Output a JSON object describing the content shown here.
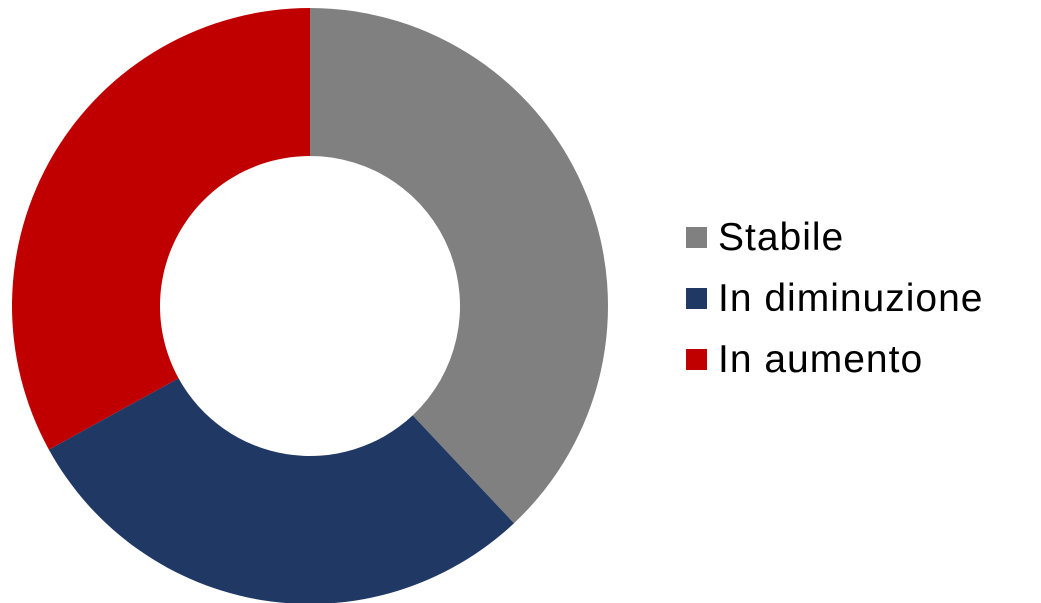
{
  "chart_data": {
    "type": "pie",
    "variant": "donut",
    "title": "",
    "categories": [
      "Stabile",
      "In diminuzione",
      "In aumento"
    ],
    "values": [
      38,
      29,
      33
    ],
    "colors": [
      "#808080",
      "#203864",
      "#c00000"
    ],
    "start_angle_deg": 0,
    "direction": "clockwise",
    "legend_position": "right"
  }
}
